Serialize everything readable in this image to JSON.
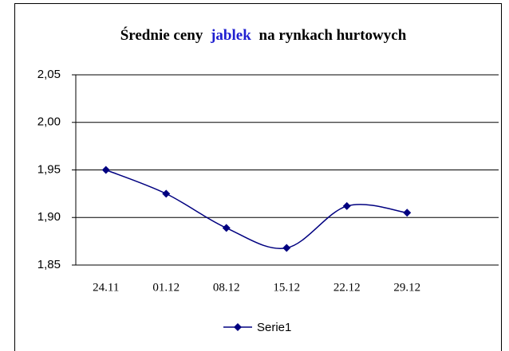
{
  "chart_data": {
    "type": "line",
    "title": [
      "Średnie ceny",
      "jablek",
      "na rynkach hurtowych"
    ],
    "title_highlight_color": "#1f1fd0",
    "categories": [
      "24.11",
      "01.12",
      "08.12",
      "15.12",
      "22.12",
      "29.12"
    ],
    "series": [
      {
        "name": "Serie1",
        "color": "#000080",
        "values": [
          1.95,
          1.925,
          1.889,
          1.868,
          1.912,
          1.905
        ]
      }
    ],
    "ylim": [
      1.85,
      2.05
    ],
    "yticks": [
      {
        "value": 1.85,
        "label": "1,85"
      },
      {
        "value": 1.9,
        "label": "1,90"
      },
      {
        "value": 1.95,
        "label": "1,95"
      },
      {
        "value": 2.0,
        "label": "2,00"
      },
      {
        "value": 2.05,
        "label": "2,05"
      }
    ],
    "grid": true,
    "smooth": true
  }
}
